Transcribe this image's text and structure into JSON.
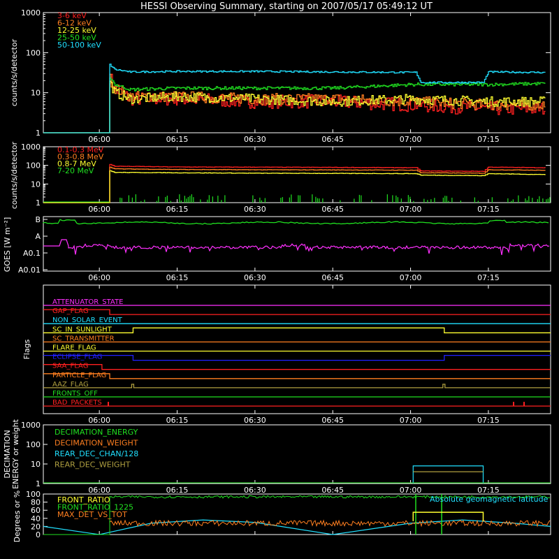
{
  "title": "HESSI Observing Summary, starting on 2007/05/17 05:49:12 UT",
  "time_ticks": [
    "06:00",
    "06:15",
    "06:30",
    "06:45",
    "07:00",
    "07:15"
  ],
  "colors": {
    "red": "#ff2020",
    "orange": "#ff7f20",
    "yellow": "#ffff30",
    "green": "#20e020",
    "cyan": "#20e0ff",
    "magenta": "#ff30ff",
    "blue": "#2020ff",
    "olive": "#b0a040",
    "white": "#ffffff",
    "pink": "#ff5a80"
  },
  "chart_data": [
    {
      "type": "line",
      "ylabel": "counts/s/detector",
      "yscale": "log",
      "ylim": [
        1,
        1000
      ],
      "yticks": [
        "1",
        "10",
        "100",
        "1000"
      ],
      "xlim": [
        "05:49:12",
        "07:27:00"
      ],
      "series": [
        {
          "name": "3-6 keV",
          "color": "#ff2020",
          "pre": 1,
          "x": [
            "06:02",
            "06:03",
            "06:06",
            "06:15",
            "06:30",
            "06:45",
            "07:00",
            "07:15",
            "07:26"
          ],
          "values": [
            25,
            12,
            7,
            7,
            6,
            6,
            5,
            4,
            4
          ]
        },
        {
          "name": "6-12 keV",
          "color": "#ff7f20",
          "pre": 1,
          "x": [
            "06:02",
            "06:03",
            "06:06",
            "06:15",
            "06:30",
            "06:45",
            "07:00",
            "07:15",
            "07:26"
          ],
          "values": [
            22,
            13,
            8,
            8,
            7,
            7,
            6,
            5,
            5
          ]
        },
        {
          "name": "12-25 keV",
          "color": "#ffff30",
          "pre": 1,
          "x": [
            "06:02",
            "06:03",
            "06:06",
            "06:15",
            "06:30",
            "06:45",
            "07:00",
            "07:15",
            "07:26"
          ],
          "values": [
            18,
            10,
            7,
            8,
            7,
            6,
            7,
            6,
            6
          ]
        },
        {
          "name": "25-50 keV",
          "color": "#20e020",
          "pre": 1,
          "x": [
            "06:02",
            "06:03",
            "06:06",
            "06:15",
            "06:30",
            "06:45",
            "07:00",
            "07:15",
            "07:26"
          ],
          "values": [
            25,
            16,
            12,
            13,
            13,
            13,
            16,
            16,
            17
          ]
        },
        {
          "name": "50-100 keV",
          "color": "#20e0ff",
          "pre": 1,
          "x": [
            "06:02",
            "06:03",
            "06:06",
            "06:15",
            "06:30",
            "06:45",
            "07:01",
            "07:02",
            "07:14",
            "07:15",
            "07:26"
          ],
          "values": [
            50,
            38,
            33,
            34,
            34,
            33,
            32,
            18,
            18,
            33,
            32
          ]
        }
      ]
    },
    {
      "type": "line",
      "ylabel": "counts/s/detector",
      "yscale": "log",
      "ylim": [
        1,
        1000
      ],
      "yticks": [
        "1",
        "10",
        "100",
        "1000"
      ],
      "series": [
        {
          "name": "0.1-0.3 MeV",
          "color": "#ff2020",
          "pre": 1,
          "x": [
            "06:02",
            "06:03",
            "06:15",
            "06:30",
            "06:45",
            "07:01",
            "07:02",
            "07:14",
            "07:15",
            "07:26"
          ],
          "values": [
            110,
            90,
            82,
            80,
            78,
            75,
            50,
            48,
            80,
            75
          ]
        },
        {
          "name": "0.3-0.8 MeV",
          "color": "#ff7f20",
          "pre": 1,
          "x": [
            "06:02",
            "06:03",
            "06:15",
            "06:30",
            "06:45",
            "07:01",
            "07:02",
            "07:14",
            "07:15",
            "07:26"
          ],
          "values": [
            80,
            65,
            60,
            58,
            57,
            55,
            40,
            38,
            58,
            55
          ]
        },
        {
          "name": "0.8-7 MeV",
          "color": "#ffff30",
          "pre": 1,
          "x": [
            "06:02",
            "06:03",
            "06:15",
            "06:30",
            "06:45",
            "07:01",
            "07:02",
            "07:14",
            "07:15",
            "07:26"
          ],
          "values": [
            50,
            42,
            40,
            38,
            37,
            36,
            30,
            28,
            36,
            32
          ]
        },
        {
          "name": "7-20 MeV",
          "color": "#20e020",
          "pre": 1,
          "x": [
            "06:02",
            "07:26"
          ],
          "values": [
            1,
            1
          ],
          "spikes": true
        }
      ]
    },
    {
      "type": "line",
      "ylabel": "GOES [W m⁻²]",
      "yticks": [
        "B",
        "A",
        "A0.1",
        "A0.01"
      ],
      "series": [
        {
          "name": "",
          "color": "#20e020",
          "x": [
            "05:49",
            "06:05",
            "06:30",
            "07:00",
            "07:15",
            "07:26"
          ],
          "values": [
            "B",
            "B",
            "B",
            "B",
            "B",
            "B"
          ]
        },
        {
          "name": "",
          "color": "#ff30ff",
          "x": [
            "05:49",
            "06:05",
            "06:30",
            "07:00",
            "07:15",
            "07:26"
          ],
          "values": [
            "A0.1",
            "A0.1",
            "A0.1",
            "A0.1",
            "A0.1",
            "A0.1"
          ]
        }
      ]
    },
    {
      "type": "line",
      "ylabel": "Flags",
      "flags": [
        {
          "name": "ATTENUATOR_STATE",
          "color": "#ff30ff"
        },
        {
          "name": "GAP_FLAG",
          "color": "#ff2020"
        },
        {
          "name": "NON_SOLAR_EVENT",
          "color": "#20e0ff"
        },
        {
          "name": "SC_IN_SUNLIGHT",
          "color": "#ffff30"
        },
        {
          "name": "SC_TRANSMITTER",
          "color": "#ff7f20"
        },
        {
          "name": "FLARE_FLAG",
          "color": "#ffff30"
        },
        {
          "name": "ECLIPSE_FLAG",
          "color": "#2020ff"
        },
        {
          "name": "SAA_FLAG",
          "color": "#ff2020"
        },
        {
          "name": "PARTICLE_FLAG",
          "color": "#ff7f20"
        },
        {
          "name": "AAZ_FLAG",
          "color": "#b0a040"
        },
        {
          "name": "FRONTS_OFF",
          "color": "#20e020"
        },
        {
          "name": "BAD_PACKETS",
          "color": "#ff2020"
        }
      ]
    },
    {
      "type": "line",
      "ylabel": "DECIMATION ENERGY or weight",
      "yscale": "log",
      "yticks": [
        "1",
        "10",
        "100",
        "1000"
      ],
      "series": [
        {
          "name": "DECIMATION_ENERGY",
          "color": "#20e020"
        },
        {
          "name": "DECIMATION_WEIGHT",
          "color": "#ff7f20"
        },
        {
          "name": "REAR_DEC_CHAN/128",
          "color": "#20e0ff"
        },
        {
          "name": "REAR_DEC_WEIGHT",
          "color": "#b0a040"
        }
      ]
    },
    {
      "type": "line",
      "ylabel": "Degrees or %",
      "ylim": [
        0,
        100
      ],
      "yticks": [
        "0",
        "20",
        "40",
        "60",
        "80",
        "100"
      ],
      "annotation": "Absolute geomagnetic latitude",
      "series": [
        {
          "name": "FRONT_RATIO",
          "color": "#ffff30"
        },
        {
          "name": "FRONT_RATIO_1225",
          "color": "#20e020"
        },
        {
          "name": "MAX_DET_VS_TOT",
          "color": "#ff7f20"
        }
      ]
    }
  ],
  "labels": {
    "p1_ylabel": "counts/s/detector",
    "p2_ylabel": "counts/s/detector",
    "p3_ylabel": "GOES [W m⁻²]",
    "p4_ylabel": "Flags",
    "p5_ylabel_1": "DECIMATION",
    "p5_ylabel_2": "ENERGY or weight",
    "p6_ylabel": "Degrees or %"
  }
}
